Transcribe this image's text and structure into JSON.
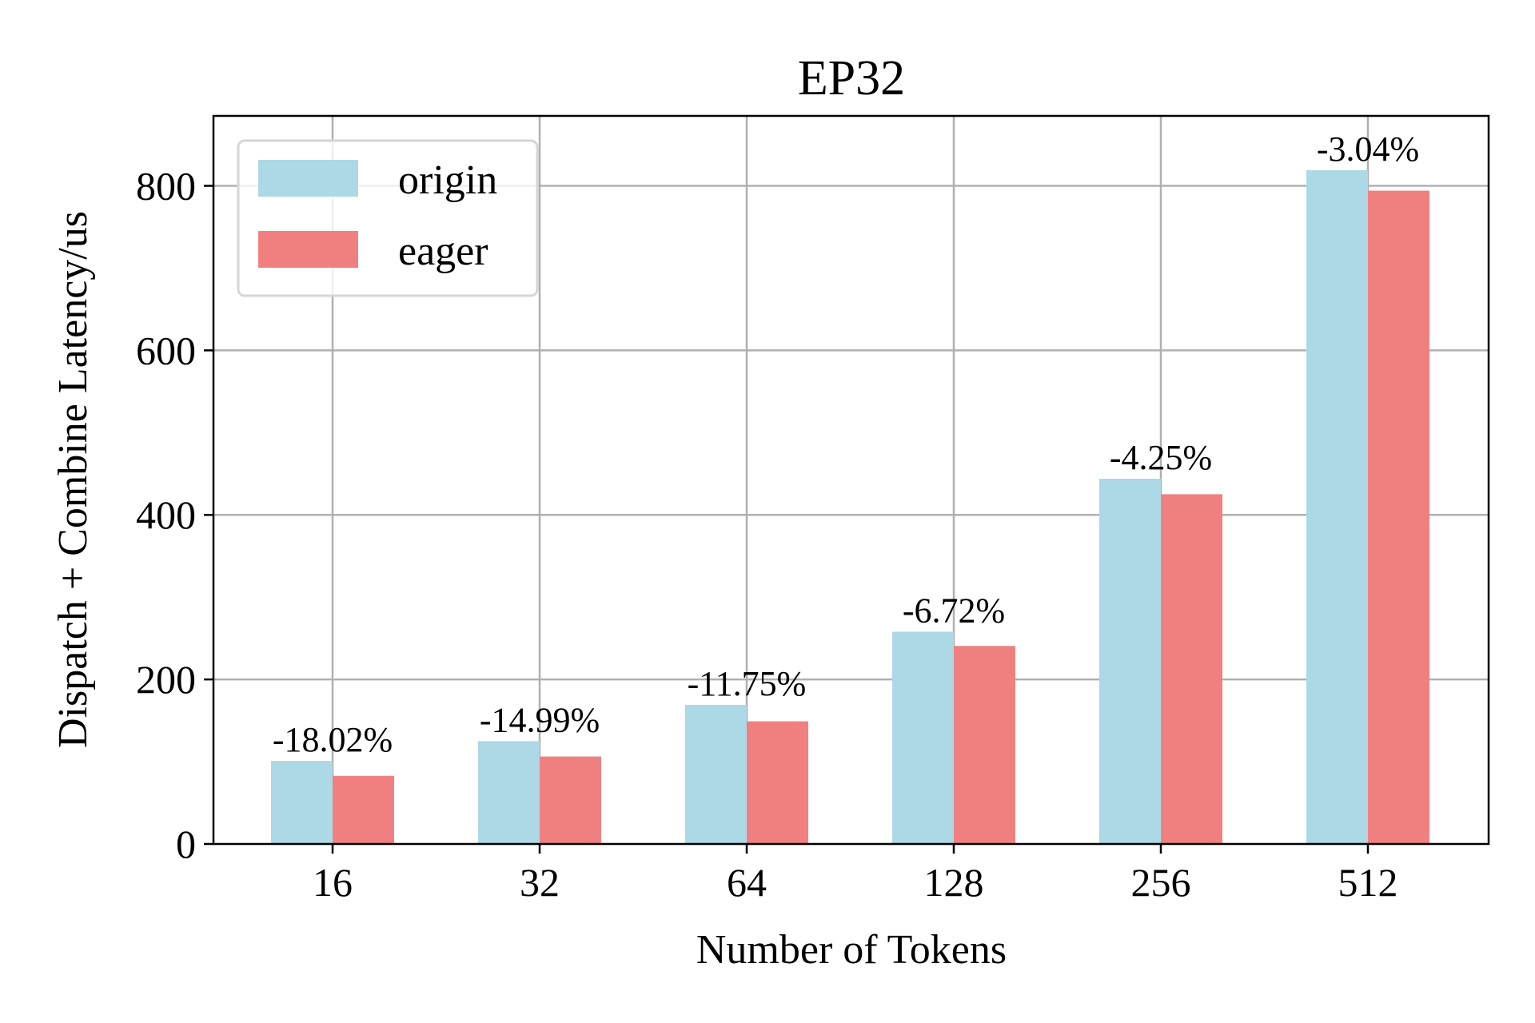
{
  "chart_data": {
    "type": "bar",
    "title": "EP32",
    "xlabel": "Number of Tokens",
    "ylabel": "Dispatch + Combine Latency/us",
    "categories": [
      "16",
      "32",
      "64",
      "128",
      "256",
      "512"
    ],
    "series": [
      {
        "name": "origin",
        "color": "#add8e6",
        "values": [
          101,
          125,
          169,
          258,
          444,
          819
        ]
      },
      {
        "name": "eager",
        "color": "#f08080",
        "values": [
          82.8,
          106.3,
          149.1,
          240.7,
          425.1,
          794.1
        ]
      }
    ],
    "data_labels": [
      "-18.02%",
      "-14.99%",
      "-11.75%",
      "-6.72%",
      "-4.25%",
      "-3.04%"
    ],
    "ylim": [
      0,
      885
    ],
    "yticks": [
      0,
      200,
      400,
      600,
      800
    ],
    "grid": true,
    "legend_position": "upper-left"
  }
}
